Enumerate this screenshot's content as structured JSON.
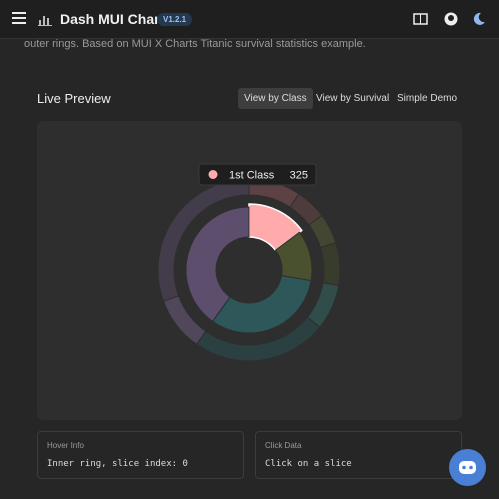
{
  "header": {
    "title": "Dash MUI Charts",
    "version": "V1.2.1"
  },
  "description": "outer rings. Based on MUI X Charts Titanic survival statistics example.",
  "panel": {
    "title": "Live Preview",
    "tabs": [
      "View by Class",
      "View by Survival",
      "Simple Demo"
    ]
  },
  "chart_data": {
    "type": "pie",
    "rings": [
      {
        "categories": [
          "1st Class",
          null,
          null,
          null
        ],
        "values": [
          325,
          285,
          706,
          885
        ],
        "colors": [
          "#ffabab",
          "#4a512f",
          "#2e5759",
          "#5c4e6c"
        ]
      },
      {
        "values": [
          203,
          122,
          118,
          167,
          178,
          528,
          212,
          673
        ],
        "colors": [
          "#5c4242",
          "#4e3c3c",
          "#434731",
          "#383c2c",
          "#304c4b",
          "#2b4040",
          "#51475b",
          "#433c4b"
        ]
      }
    ]
  },
  "info_boxes": [
    {
      "label": "Hover Info",
      "text": "Inner ring, slice index: 0"
    },
    {
      "label": "Click Data",
      "text": "Click on a slice"
    }
  ]
}
